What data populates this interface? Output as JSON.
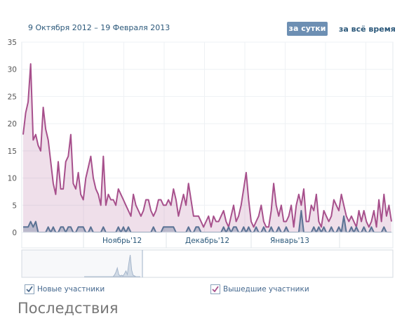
{
  "header": {
    "date_range": "9 Октября 2012 – 19 Февраля 2013",
    "btn_day": "за сутки",
    "btn_all": "за всё время"
  },
  "chart_data": {
    "type": "area",
    "ylim": [
      0,
      35
    ],
    "yticks": [
      "0",
      "5",
      "10",
      "15",
      "20",
      "25",
      "30",
      "35"
    ],
    "xtick_labels": [
      "Ноябрь'12",
      "Декабрь'12",
      "Январь'13"
    ],
    "grid": true,
    "series": [
      {
        "name": "Вышедшие участники",
        "color": "#a7508c",
        "values": [
          18,
          22,
          24,
          31,
          17,
          18,
          16,
          15,
          23,
          19,
          17,
          13,
          9,
          7,
          13,
          8,
          8,
          13,
          14,
          18,
          9,
          8,
          11,
          7,
          6,
          10,
          12,
          14,
          10,
          8,
          7,
          5,
          14,
          5,
          7,
          6,
          6,
          5,
          8,
          7,
          6,
          5,
          4,
          3,
          7,
          5,
          4,
          3,
          4,
          6,
          6,
          4,
          3,
          4,
          6,
          6,
          5,
          5,
          6,
          5,
          8,
          6,
          3,
          5,
          7,
          5,
          9,
          6,
          3,
          3,
          3,
          2,
          1,
          2,
          3,
          1,
          3,
          2,
          2,
          3,
          4,
          2,
          1,
          3,
          5,
          2,
          3,
          5,
          8,
          11,
          6,
          2,
          1,
          2,
          3,
          5,
          2,
          1,
          1,
          4,
          9,
          5,
          3,
          5,
          2,
          2,
          3,
          5,
          1,
          5,
          7,
          5,
          8,
          2,
          2,
          5,
          4,
          7,
          2,
          1,
          4,
          3,
          2,
          3,
          6,
          5,
          4,
          7,
          5,
          3,
          2,
          3,
          2,
          1,
          4,
          2,
          4,
          2,
          1,
          2,
          4,
          1,
          6,
          2,
          7,
          3,
          5,
          2
        ]
      },
      {
        "name": "Новые участники",
        "color": "#5b7294",
        "values": [
          1,
          1,
          1,
          2,
          1,
          2,
          0,
          0,
          0,
          0,
          1,
          0,
          1,
          0,
          0,
          1,
          1,
          0,
          1,
          1,
          0,
          0,
          1,
          1,
          1,
          0,
          0,
          1,
          0,
          0,
          0,
          0,
          1,
          0,
          0,
          0,
          0,
          0,
          1,
          0,
          1,
          0,
          1,
          0,
          0,
          0,
          0,
          0,
          0,
          0,
          0,
          0,
          1,
          0,
          0,
          0,
          1,
          1,
          1,
          1,
          1,
          0,
          0,
          0,
          0,
          0,
          1,
          0,
          0,
          1,
          1,
          0,
          0,
          0,
          0,
          0,
          0,
          0,
          0,
          0,
          1,
          0,
          1,
          0,
          1,
          1,
          0,
          0,
          1,
          0,
          1,
          0,
          0,
          1,
          0,
          0,
          1,
          0,
          0,
          1,
          0,
          0,
          1,
          0,
          0,
          1,
          0,
          0,
          0,
          0,
          0,
          4,
          0,
          0,
          0,
          0,
          1,
          0,
          1,
          0,
          1,
          0,
          0,
          1,
          0,
          0,
          1,
          0,
          3,
          0,
          0,
          1,
          0,
          1,
          0,
          0,
          1,
          0,
          0,
          1,
          0,
          0,
          0,
          0,
          1,
          0,
          0,
          0
        ]
      }
    ],
    "legend": [
      "Новые участники",
      "Вышедшие участники"
    ]
  },
  "legend": {
    "new_members": "Новые участники",
    "left_members": "Вышедшие участники"
  },
  "section": {
    "title": "Последствия"
  }
}
